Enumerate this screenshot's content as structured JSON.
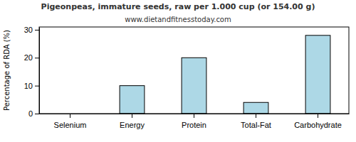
{
  "chart_data": {
    "type": "bar",
    "title": "Pigeonpeas, immature seeds, raw per 1.000 cup (or 154.00 g)",
    "subtitle": "www.dietandfitnesstoday.com",
    "y_label": "Percentage of RDA (%)",
    "categories": [
      "Selenium",
      "Energy",
      "Protein",
      "Total-Fat",
      "Carbohydrate"
    ],
    "values": [
      0,
      10,
      20,
      4,
      28
    ],
    "color": "#add8e6",
    "ylim": [
      0,
      31
    ],
    "yticks": [
      0,
      10,
      20,
      30
    ],
    "grid": false
  }
}
